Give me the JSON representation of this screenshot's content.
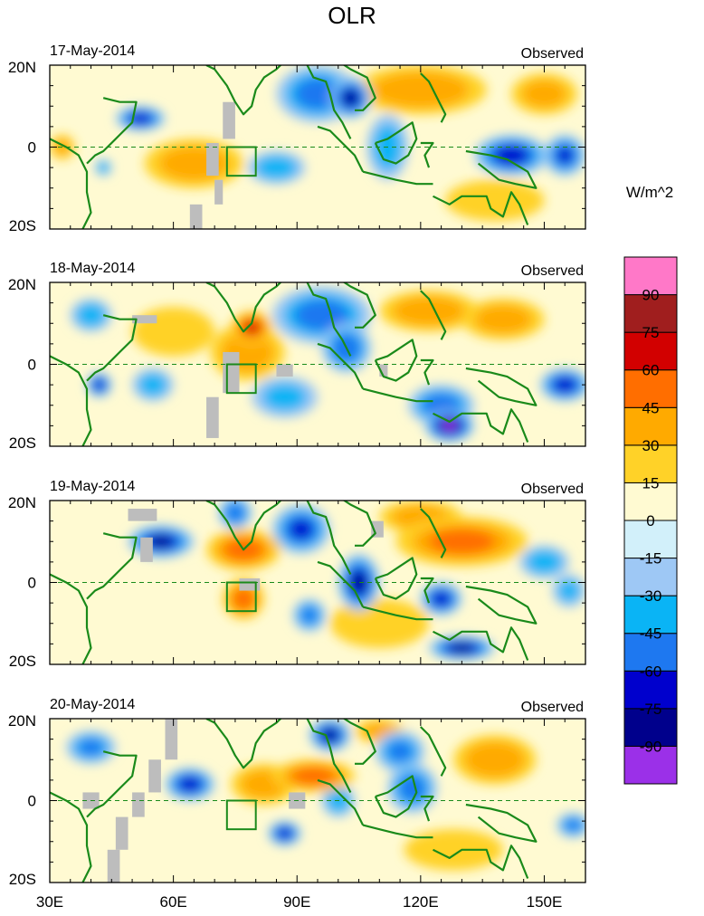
{
  "chart_data": {
    "type": "heatmap",
    "title": "OLR",
    "unit_label": "W/m^2",
    "panel_tag": "Observed",
    "x_ticks": [
      30,
      60,
      90,
      120,
      150
    ],
    "x_tick_labels": [
      "30E",
      "60E",
      "90E",
      "120E",
      "150E"
    ],
    "y_ticks": [
      20,
      0,
      -20
    ],
    "y_tick_labels": [
      "20N",
      "0",
      "20S"
    ],
    "xlim": [
      30,
      160
    ],
    "ylim": [
      -20,
      20
    ],
    "colorbar": {
      "colors": [
        "#9b30e8",
        "#00008c",
        "#0000cd",
        "#1e78f0",
        "#0ab4f5",
        "#9ec8f5",
        "#d2f0fa",
        "#fffad2",
        "#ffd228",
        "#ffaa00",
        "#ff6e00",
        "#d20000",
        "#a01e1e",
        "#ff78c8"
      ],
      "levels": [
        -90,
        -75,
        -60,
        -45,
        -30,
        -15,
        0,
        15,
        30,
        45,
        60,
        75,
        90
      ],
      "labels": [
        "-90",
        "-75",
        "-60",
        "-45",
        "-30",
        "-15",
        "0",
        "15",
        "30",
        "45",
        "60",
        "75",
        "90"
      ]
    },
    "panels": [
      {
        "date": "17-May-2014",
        "anomalies": [
          {
            "lon": 95,
            "lat": 13,
            "value": -50,
            "rx": 10,
            "ry": 7
          },
          {
            "lon": 103,
            "lat": 12,
            "value": -75,
            "rx": 5,
            "ry": 5
          },
          {
            "lon": 112,
            "lat": 0,
            "value": -35,
            "rx": 5,
            "ry": 8
          },
          {
            "lon": 142,
            "lat": -2,
            "value": -70,
            "rx": 9,
            "ry": 5
          },
          {
            "lon": 155,
            "lat": -2,
            "value": -60,
            "rx": 5,
            "ry": 5
          },
          {
            "lon": 52,
            "lat": 7,
            "value": -70,
            "rx": 6,
            "ry": 3
          },
          {
            "lon": 43,
            "lat": -5,
            "value": -40,
            "rx": 2,
            "ry": 2
          },
          {
            "lon": 85,
            "lat": -5,
            "value": -40,
            "rx": 7,
            "ry": 4
          },
          {
            "lon": 65,
            "lat": -4,
            "value": 35,
            "rx": 12,
            "ry": 6
          },
          {
            "lon": 120,
            "lat": 14,
            "value": 40,
            "rx": 16,
            "ry": 6
          },
          {
            "lon": 150,
            "lat": 13,
            "value": 30,
            "rx": 8,
            "ry": 5
          },
          {
            "lon": 138,
            "lat": -13,
            "value": 20,
            "rx": 12,
            "ry": 5
          },
          {
            "lon": 33,
            "lat": 0,
            "value": 30,
            "rx": 3,
            "ry": 3
          }
        ],
        "missing": [
          [
            72,
            11,
            3,
            9
          ],
          [
            68,
            1,
            3,
            8
          ],
          [
            64,
            -14,
            3,
            7
          ],
          [
            70,
            -8,
            2,
            6
          ]
        ]
      },
      {
        "date": "18-May-2014",
        "anomalies": [
          {
            "lon": 96,
            "lat": 12,
            "value": -50,
            "rx": 12,
            "ry": 7
          },
          {
            "lon": 102,
            "lat": 4,
            "value": -55,
            "rx": 6,
            "ry": 6
          },
          {
            "lon": 127,
            "lat": -15,
            "value": -90,
            "rx": 6,
            "ry": 4
          },
          {
            "lon": 125,
            "lat": -10,
            "value": -55,
            "rx": 8,
            "ry": 5
          },
          {
            "lon": 155,
            "lat": -5,
            "value": -70,
            "rx": 6,
            "ry": 4
          },
          {
            "lon": 42,
            "lat": -5,
            "value": -70,
            "rx": 3,
            "ry": 3
          },
          {
            "lon": 40,
            "lat": 12,
            "value": -40,
            "rx": 5,
            "ry": 4
          },
          {
            "lon": 55,
            "lat": -5,
            "value": -35,
            "rx": 5,
            "ry": 4
          },
          {
            "lon": 87,
            "lat": -8,
            "value": -30,
            "rx": 8,
            "ry": 5
          },
          {
            "lon": 79,
            "lat": 9,
            "value": 60,
            "rx": 5,
            "ry": 4
          },
          {
            "lon": 78,
            "lat": 3,
            "value": 35,
            "rx": 9,
            "ry": 7
          },
          {
            "lon": 122,
            "lat": 13,
            "value": 40,
            "rx": 12,
            "ry": 5
          },
          {
            "lon": 140,
            "lat": 11,
            "value": 35,
            "rx": 10,
            "ry": 5
          },
          {
            "lon": 60,
            "lat": 8,
            "value": 25,
            "rx": 10,
            "ry": 6
          }
        ],
        "missing": [
          [
            50,
            12,
            6,
            2
          ],
          [
            72,
            3,
            4,
            10
          ],
          [
            68,
            -8,
            3,
            10
          ],
          [
            85,
            0,
            4,
            3
          ],
          [
            110,
            0,
            2,
            3
          ]
        ]
      },
      {
        "date": "19-May-2014",
        "anomalies": [
          {
            "lon": 91,
            "lat": 13,
            "value": -60,
            "rx": 7,
            "ry": 6
          },
          {
            "lon": 75,
            "lat": 17,
            "value": -55,
            "rx": 4,
            "ry": 4
          },
          {
            "lon": 57,
            "lat": 10,
            "value": -75,
            "rx": 8,
            "ry": 4
          },
          {
            "lon": 105,
            "lat": 0,
            "value": -75,
            "rx": 5,
            "ry": 7
          },
          {
            "lon": 125,
            "lat": -4,
            "value": -70,
            "rx": 5,
            "ry": 4
          },
          {
            "lon": 130,
            "lat": -16,
            "value": -80,
            "rx": 8,
            "ry": 3
          },
          {
            "lon": 93,
            "lat": -8,
            "value": -45,
            "rx": 4,
            "ry": 4
          },
          {
            "lon": 150,
            "lat": 5,
            "value": -40,
            "rx": 6,
            "ry": 4
          },
          {
            "lon": 156,
            "lat": -2,
            "value": -30,
            "rx": 4,
            "ry": 4
          },
          {
            "lon": 77,
            "lat": 8,
            "value": 50,
            "rx": 9,
            "ry": 5
          },
          {
            "lon": 77,
            "lat": -4,
            "value": 50,
            "rx": 5,
            "ry": 5
          },
          {
            "lon": 130,
            "lat": 10,
            "value": 45,
            "rx": 16,
            "ry": 6
          },
          {
            "lon": 120,
            "lat": 16,
            "value": 35,
            "rx": 10,
            "ry": 4
          },
          {
            "lon": 110,
            "lat": -10,
            "value": 20,
            "rx": 12,
            "ry": 6
          }
        ],
        "missing": [
          [
            49,
            18,
            7,
            3
          ],
          [
            52,
            11,
            3,
            6
          ],
          [
            76,
            1,
            5,
            3
          ],
          [
            108,
            15,
            3,
            4
          ]
        ]
      },
      {
        "date": "20-May-2014",
        "anomalies": [
          {
            "lon": 98,
            "lat": 16,
            "value": -75,
            "rx": 5,
            "ry": 4
          },
          {
            "lon": 64,
            "lat": 4,
            "value": -70,
            "rx": 6,
            "ry": 4
          },
          {
            "lon": 87,
            "lat": -8,
            "value": -70,
            "rx": 4,
            "ry": 3
          },
          {
            "lon": 118,
            "lat": 3,
            "value": -50,
            "rx": 6,
            "ry": 6
          },
          {
            "lon": 115,
            "lat": 12,
            "value": -45,
            "rx": 6,
            "ry": 5
          },
          {
            "lon": 40,
            "lat": 13,
            "value": -45,
            "rx": 6,
            "ry": 4
          },
          {
            "lon": 100,
            "lat": 0,
            "value": -40,
            "rx": 4,
            "ry": 4
          },
          {
            "lon": 157,
            "lat": -6,
            "value": -45,
            "rx": 4,
            "ry": 3
          },
          {
            "lon": 94,
            "lat": 6,
            "value": 50,
            "rx": 10,
            "ry": 4
          },
          {
            "lon": 82,
            "lat": 4,
            "value": 35,
            "rx": 8,
            "ry": 5
          },
          {
            "lon": 138,
            "lat": 10,
            "value": 40,
            "rx": 10,
            "ry": 6
          },
          {
            "lon": 110,
            "lat": 17,
            "value": 30,
            "rx": 6,
            "ry": 3
          },
          {
            "lon": 128,
            "lat": -12,
            "value": 20,
            "rx": 12,
            "ry": 5
          }
        ],
        "missing": [
          [
            58,
            20,
            3,
            10
          ],
          [
            54,
            10,
            3,
            8
          ],
          [
            50,
            2,
            3,
            6
          ],
          [
            46,
            -4,
            3,
            8
          ],
          [
            44,
            -12,
            3,
            8
          ],
          [
            38,
            2,
            4,
            4
          ],
          [
            88,
            2,
            4,
            4
          ]
        ]
      }
    ]
  }
}
